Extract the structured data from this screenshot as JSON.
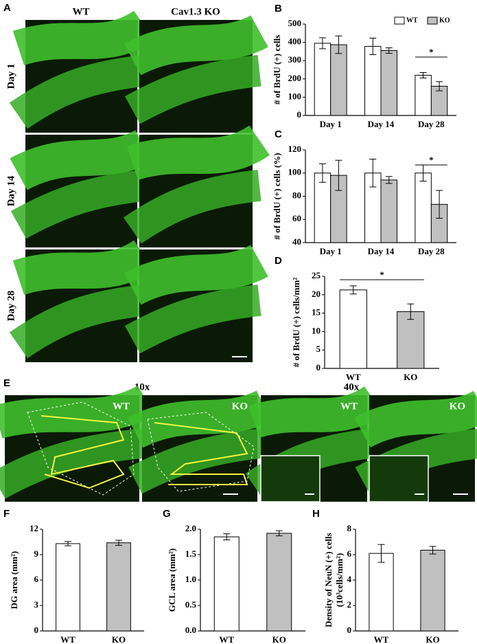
{
  "figure": {
    "panel_a": {
      "label": "A",
      "columns": [
        "WT",
        "Cav1.3 KO"
      ],
      "rows": [
        "Day 1",
        "Day 14",
        "Day 28"
      ]
    },
    "panel_e": {
      "label": "E",
      "magnifications": [
        "10x",
        "40x"
      ],
      "image_labels": [
        "WT",
        "KO",
        "WT",
        "KO"
      ]
    }
  },
  "chart_data": [
    {
      "type": "bar",
      "panel": "B",
      "ylabel": [
        "# of BrdU (+) cells"
      ],
      "categories": [
        "Day 1",
        "Day 14",
        "Day 28"
      ],
      "series": [
        {
          "name": "WT",
          "color": "#ffffff",
          "values": [
            395,
            378,
            220
          ],
          "errors": [
            30,
            45,
            15
          ]
        },
        {
          "name": "KO",
          "color": "#c0c0c0",
          "values": [
            387,
            355,
            160
          ],
          "errors": [
            48,
            15,
            25
          ]
        }
      ],
      "ylim": [
        0,
        500
      ],
      "yticks": [
        0,
        100,
        200,
        300,
        400,
        500
      ],
      "legend": "upper right",
      "annotations": [
        "*"
      ]
    },
    {
      "type": "bar",
      "panel": "C",
      "ylabel": [
        "# of BrdU (+) cells (%)"
      ],
      "categories": [
        "Day 1",
        "Day 14",
        "Day 28"
      ],
      "series": [
        {
          "name": "WT",
          "color": "#ffffff",
          "values": [
            100,
            100,
            100
          ],
          "errors": [
            8,
            12,
            7
          ]
        },
        {
          "name": "KO",
          "color": "#c0c0c0",
          "values": [
            98,
            94,
            73
          ],
          "errors": [
            13,
            3,
            12
          ]
        }
      ],
      "ylim": [
        40,
        120
      ],
      "yticks": [
        40,
        60,
        80,
        100,
        120
      ],
      "annotations": [
        "*"
      ]
    },
    {
      "type": "bar",
      "panel": "D",
      "ylabel": [
        "# of BrdU (+) cells/mm²"
      ],
      "categories": [
        "WT",
        "KO"
      ],
      "values": [
        21.3,
        15.4
      ],
      "errors": [
        1.1,
        2.1
      ],
      "colors": [
        "#ffffff",
        "#c0c0c0"
      ],
      "ylim": [
        0,
        25
      ],
      "yticks": [
        0,
        5,
        10,
        15,
        20,
        25
      ],
      "annotations": [
        "*"
      ]
    },
    {
      "type": "bar",
      "panel": "F",
      "ylabel": [
        "DG area (mm²)"
      ],
      "categories": [
        "WT",
        "KO"
      ],
      "values": [
        10.3,
        10.4
      ],
      "errors": [
        0.25,
        0.3
      ],
      "colors": [
        "#ffffff",
        "#c0c0c0"
      ],
      "ylim": [
        0,
        12
      ],
      "yticks": [
        0,
        3,
        6,
        9,
        12
      ]
    },
    {
      "type": "bar",
      "panel": "G",
      "ylabel": [
        "GCL area (mm²)"
      ],
      "categories": [
        "WT",
        "KO"
      ],
      "values": [
        1.85,
        1.92
      ],
      "errors": [
        0.06,
        0.05
      ],
      "colors": [
        "#ffffff",
        "#c0c0c0"
      ],
      "ylim": [
        0,
        2
      ],
      "yticks": [
        {
          "value": 0,
          "label": "0.0"
        },
        {
          "value": 0.5,
          "label": "0.5"
        },
        {
          "value": 1,
          "label": "1.0"
        },
        {
          "value": 1.5,
          "label": "1.5"
        },
        {
          "value": 2,
          "label": "2.0"
        }
      ]
    },
    {
      "type": "bar",
      "panel": "H",
      "ylabel": [
        "Density of NeuN (+) cells",
        "(10³cells/mm²)"
      ],
      "categories": [
        "WT",
        "KO"
      ],
      "values": [
        6.1,
        6.35
      ],
      "errors": [
        0.7,
        0.3
      ],
      "colors": [
        "#ffffff",
        "#c0c0c0"
      ],
      "ylim": [
        0,
        8
      ],
      "yticks": [
        0,
        2,
        4,
        6,
        8
      ]
    }
  ]
}
